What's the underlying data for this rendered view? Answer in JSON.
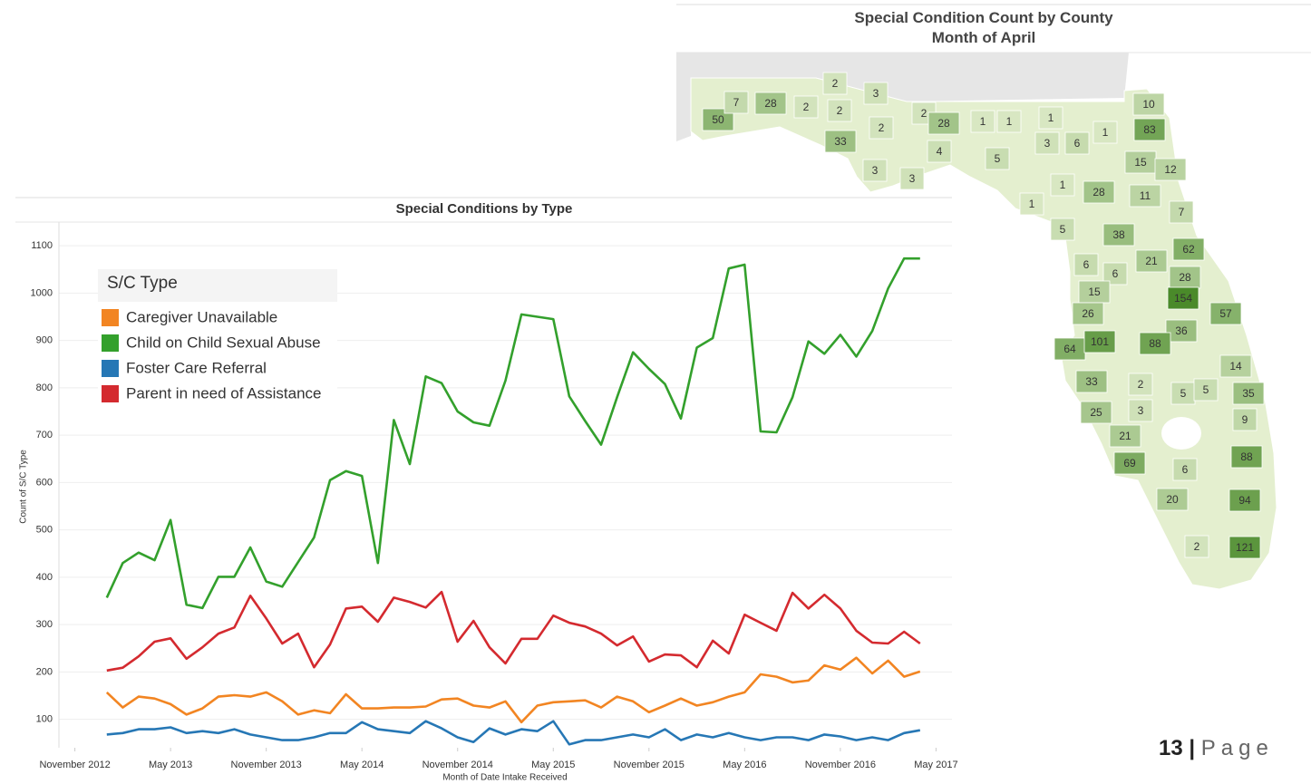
{
  "chart_data": [
    {
      "type": "line",
      "title": "Special Conditions by Type",
      "y_label": "Count of S/C Type",
      "x_label": "Month of Date Intake Received",
      "legend_title": "S/C Type",
      "legend": "upper left",
      "grid": true,
      "x": [
        "2013-01",
        "2013-02",
        "2013-03",
        "2013-04",
        "2013-05",
        "2013-06",
        "2013-07",
        "2013-08",
        "2013-09",
        "2013-10",
        "2013-11",
        "2013-12",
        "2014-01",
        "2014-02",
        "2014-03",
        "2014-04",
        "2014-05",
        "2014-06",
        "2014-07",
        "2014-08",
        "2014-09",
        "2014-10",
        "2014-11",
        "2014-12",
        "2015-01",
        "2015-02",
        "2015-03",
        "2015-04",
        "2015-05",
        "2015-06",
        "2015-07",
        "2015-08",
        "2015-09",
        "2015-10",
        "2015-11",
        "2015-12",
        "2016-01",
        "2016-02",
        "2016-03",
        "2016-04",
        "2016-05",
        "2016-06",
        "2016-07",
        "2016-08",
        "2016-09",
        "2016-10",
        "2016-11",
        "2016-12",
        "2017-01",
        "2017-02",
        "2017-03",
        "2017-04"
      ],
      "xlim": [
        "2012-10",
        "2017-06"
      ],
      "xticks": [
        {
          "value": "2012-11",
          "label": "November 2012"
        },
        {
          "value": "2013-05",
          "label": "May 2013"
        },
        {
          "value": "2013-11",
          "label": "November 2013"
        },
        {
          "value": "2014-05",
          "label": "May 2014"
        },
        {
          "value": "2014-11",
          "label": "November 2014"
        },
        {
          "value": "2015-05",
          "label": "May 2015"
        },
        {
          "value": "2015-11",
          "label": "November 2015"
        },
        {
          "value": "2016-05",
          "label": "May 2016"
        },
        {
          "value": "2016-11",
          "label": "November 2016"
        },
        {
          "value": "2017-05",
          "label": "May 2017"
        }
      ],
      "ylim": [
        40,
        1150
      ],
      "yticks": [
        100,
        200,
        300,
        400,
        500,
        600,
        700,
        800,
        900,
        1000,
        1100
      ],
      "series": [
        {
          "name": "Caregiver Unavailable",
          "color": "#f28522",
          "values": [
            157,
            125,
            148,
            144,
            132,
            110,
            123,
            148,
            151,
            148,
            157,
            138,
            110,
            119,
            113,
            153,
            123,
            123,
            125,
            125,
            127,
            142,
            144,
            129,
            125,
            138,
            94,
            129,
            136,
            138,
            140,
            125,
            148,
            138,
            115,
            129,
            144,
            129,
            136,
            148,
            157,
            195,
            190,
            178,
            182,
            214,
            205,
            230,
            197,
            224,
            190,
            201
          ]
        },
        {
          "name": "Child on Child Sexual Abuse",
          "color": "#33a02c",
          "values": [
            357,
            430,
            452,
            436,
            521,
            342,
            335,
            401,
            401,
            463,
            391,
            380,
            432,
            484,
            605,
            624,
            614,
            430,
            732,
            639,
            824,
            810,
            750,
            727,
            720,
            815,
            955,
            950,
            945,
            782,
            730,
            680,
            780,
            875,
            840,
            808,
            735,
            885,
            905,
            1052,
            1060,
            708,
            706,
            780,
            898,
            872,
            912,
            866,
            920,
            1010,
            1073,
            1073
          ]
        },
        {
          "name": "Foster Care Referral",
          "color": "#2677b5",
          "values": [
            68,
            71,
            79,
            79,
            83,
            71,
            75,
            71,
            79,
            68,
            62,
            56,
            56,
            62,
            71,
            71,
            94,
            79,
            75,
            71,
            96,
            81,
            62,
            52,
            81,
            68,
            79,
            75,
            96,
            47,
            56,
            56,
            62,
            68,
            62,
            79,
            56,
            68,
            62,
            71,
            62,
            56,
            62,
            62,
            56,
            68,
            64,
            56,
            62,
            56,
            71,
            77
          ]
        },
        {
          "name": "Parent in need of Assistance",
          "color": "#d42a2f",
          "values": [
            203,
            209,
            233,
            264,
            271,
            228,
            252,
            281,
            294,
            361,
            313,
            260,
            281,
            210,
            258,
            334,
            338,
            306,
            357,
            348,
            336,
            369,
            264,
            308,
            252,
            218,
            270,
            270,
            319,
            304,
            296,
            281,
            256,
            275,
            222,
            237,
            235,
            210,
            266,
            239,
            321,
            304,
            287,
            367,
            334,
            363,
            334,
            287,
            262,
            260,
            285,
            260
          ]
        }
      ]
    },
    {
      "type": "map",
      "title": "Special Condition Count by County Month of April",
      "values": [
        50,
        7,
        28,
        2,
        2,
        2,
        3,
        33,
        2,
        3,
        3,
        2,
        28,
        4,
        1,
        1,
        1,
        5,
        3,
        6,
        1,
        10,
        83,
        15,
        12,
        28,
        1,
        11,
        7,
        1,
        5,
        38,
        62,
        21,
        6,
        6,
        28,
        15,
        154,
        26,
        57,
        36,
        64,
        101,
        88,
        14,
        33,
        2,
        5,
        5,
        35,
        25,
        3,
        9,
        21,
        69,
        6,
        88,
        20,
        94,
        2,
        121
      ]
    }
  ],
  "footer": {
    "number": "13",
    "separator": "|",
    "word": "Page"
  }
}
